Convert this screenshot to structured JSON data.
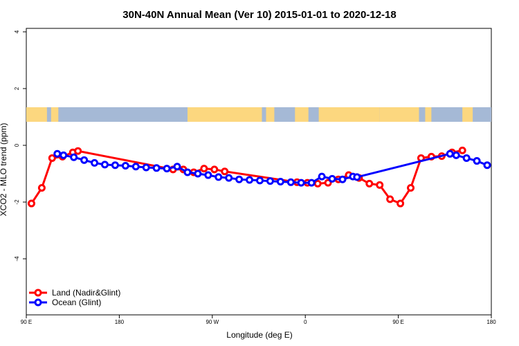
{
  "chart_data": {
    "type": "line",
    "title": "30N-40N Annual Mean (Ver 10)   2015-01-01 to 2020-12-18",
    "xlabel": "Longitude (deg E)",
    "ylabel": "XCO2 - MLO trend (ppm)",
    "xlim": [
      90,
      540
    ],
    "ylim": [
      -6,
      4.2
    ],
    "x_ticks": [
      {
        "value": 90,
        "label": "90 E"
      },
      {
        "value": 180,
        "label": "180"
      },
      {
        "value": 270,
        "label": "90 W"
      },
      {
        "value": 360,
        "label": "0"
      },
      {
        "value": 450,
        "label": "90 E"
      },
      {
        "value": 540,
        "label": "180"
      }
    ],
    "y_ticks": [
      {
        "value": 4,
        "label": "4"
      },
      {
        "value": 2,
        "label": "2"
      },
      {
        "value": 0,
        "label": "0"
      },
      {
        "value": -2,
        "label": "-2"
      },
      {
        "value": -4,
        "label": "-4"
      }
    ],
    "grid": false,
    "legend_position": "bottom-left",
    "series": [
      {
        "name": "Land (Nadir&Glint)",
        "color": "#ff0000",
        "x": [
          95,
          105,
          115,
          125,
          135,
          140,
          232,
          242,
          252,
          262,
          272,
          282,
          352,
          362,
          372,
          382,
          392,
          402,
          412,
          422,
          432,
          442,
          452,
          462,
          472,
          482,
          492,
          502,
          512
        ],
        "y": [
          -2.05,
          -1.5,
          -0.45,
          -0.4,
          -0.25,
          -0.2,
          -0.85,
          -0.85,
          -0.95,
          -0.82,
          -0.85,
          -0.92,
          -1.3,
          -1.32,
          -1.35,
          -1.32,
          -1.2,
          -1.05,
          -1.15,
          -1.35,
          -1.4,
          -1.9,
          -2.05,
          -1.5,
          -0.45,
          -0.4,
          -0.38,
          -0.25,
          -0.18
        ]
      },
      {
        "name": "Ocean (Glint)",
        "color": "#0000ff",
        "x": [
          120,
          126,
          136,
          146,
          156,
          166,
          176,
          186,
          196,
          206,
          216,
          226,
          236,
          246,
          256,
          266,
          276,
          286,
          296,
          306,
          316,
          326,
          336,
          346,
          356,
          366,
          376,
          386,
          396,
          406,
          410,
          500,
          506,
          516,
          526,
          536
        ],
        "y": [
          -0.3,
          -0.35,
          -0.42,
          -0.52,
          -0.62,
          -0.68,
          -0.7,
          -0.72,
          -0.75,
          -0.78,
          -0.8,
          -0.82,
          -0.75,
          -0.95,
          -1.0,
          -1.05,
          -1.12,
          -1.15,
          -1.2,
          -1.22,
          -1.24,
          -1.26,
          -1.28,
          -1.3,
          -1.32,
          -1.32,
          -1.1,
          -1.18,
          -1.2,
          -1.1,
          -1.12,
          -0.3,
          -0.35,
          -0.45,
          -0.55,
          -0.7
        ]
      }
    ]
  },
  "map_strip": {
    "ocean_color": "#a5b9d6",
    "land_color": "#fcd77f"
  }
}
